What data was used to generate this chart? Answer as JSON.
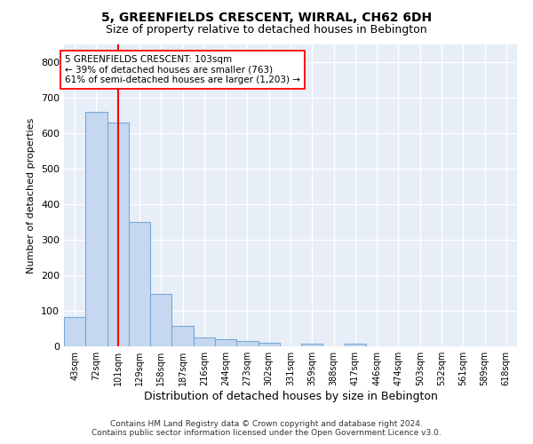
{
  "title": "5, GREENFIELDS CRESCENT, WIRRAL, CH62 6DH",
  "subtitle": "Size of property relative to detached houses in Bebington",
  "xlabel": "Distribution of detached houses by size in Bebington",
  "ylabel": "Number of detached properties",
  "categories": [
    "43sqm",
    "72sqm",
    "101sqm",
    "129sqm",
    "158sqm",
    "187sqm",
    "216sqm",
    "244sqm",
    "273sqm",
    "302sqm",
    "331sqm",
    "359sqm",
    "388sqm",
    "417sqm",
    "446sqm",
    "474sqm",
    "503sqm",
    "532sqm",
    "561sqm",
    "589sqm",
    "618sqm"
  ],
  "values": [
    83,
    660,
    630,
    350,
    148,
    58,
    25,
    20,
    15,
    10,
    0,
    8,
    0,
    8,
    0,
    0,
    0,
    0,
    0,
    0,
    0
  ],
  "bar_color": "#c5d8f0",
  "bar_edge_color": "#7aa8d4",
  "red_line_index": 2,
  "annotation_label": "5 GREENFIELDS CRESCENT: 103sqm",
  "annotation_line1": "← 39% of detached houses are smaller (763)",
  "annotation_line2": "61% of semi-detached houses are larger (1,203) →",
  "ylim": [
    0,
    850
  ],
  "yticks": [
    0,
    100,
    200,
    300,
    400,
    500,
    600,
    700,
    800
  ],
  "background_color": "#e8eef8",
  "grid_color": "#ffffff",
  "footer_line1": "Contains HM Land Registry data © Crown copyright and database right 2024.",
  "footer_line2": "Contains public sector information licensed under the Open Government Licence v3.0.",
  "title_fontsize": 10,
  "subtitle_fontsize": 9,
  "ylabel_fontsize": 8,
  "xlabel_fontsize": 9
}
